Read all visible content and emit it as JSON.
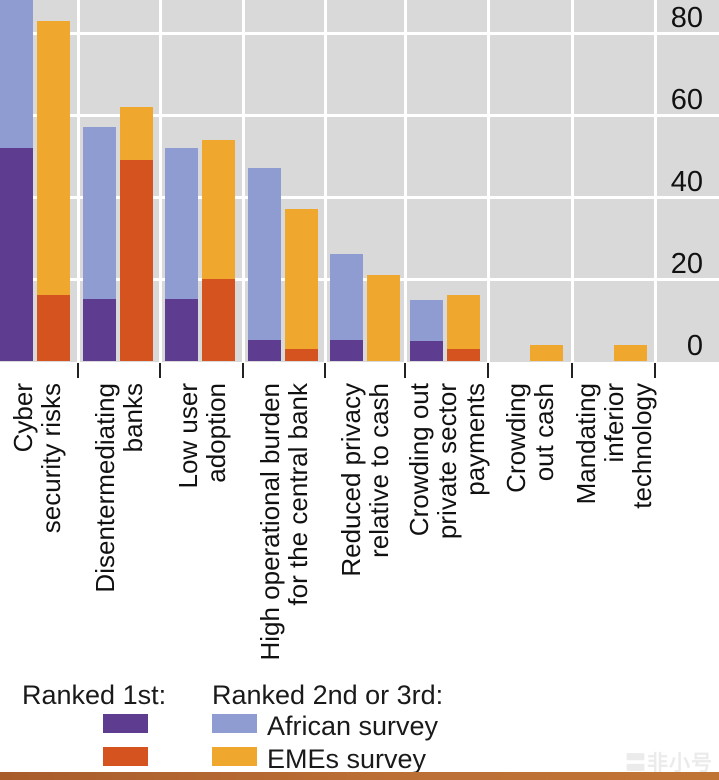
{
  "chart_data": {
    "type": "bar",
    "variant": "grouped-stacked",
    "title": "",
    "xlabel": "",
    "ylabel": "",
    "grid": true,
    "y_ticks": [
      80,
      60,
      40,
      20,
      0
    ],
    "ylim_visible": [
      0,
      88
    ],
    "legend_position": "bottom",
    "series_keys": [
      "african_ranked_1st",
      "african_ranked_2nd_3rd",
      "emes_ranked_1st",
      "emes_ranked_2nd_3rd"
    ],
    "categories": [
      {
        "slug": "cyber-security-risks",
        "label_lines": [
          "Cyber",
          "security risks"
        ],
        "african": {
          "ranked_1st": 52,
          "ranked_2nd_3rd": 39,
          "clipped_at_top": true
        },
        "emes": {
          "ranked_1st": 16,
          "ranked_2nd_3rd": 67
        }
      },
      {
        "slug": "disentermediating-banks",
        "label_lines": [
          "Disentermediating",
          "banks"
        ],
        "african": {
          "ranked_1st": 15,
          "ranked_2nd_3rd": 42
        },
        "emes": {
          "ranked_1st": 49,
          "ranked_2nd_3rd": 13
        }
      },
      {
        "slug": "low-user-adoption",
        "label_lines": [
          "Low user",
          "adoption"
        ],
        "african": {
          "ranked_1st": 15,
          "ranked_2nd_3rd": 37
        },
        "emes": {
          "ranked_1st": 20,
          "ranked_2nd_3rd": 34
        }
      },
      {
        "slug": "high-operational-burden",
        "label_lines": [
          "High operational burden",
          "for the central bank"
        ],
        "african": {
          "ranked_1st": 5,
          "ranked_2nd_3rd": 42
        },
        "emes": {
          "ranked_1st": 3,
          "ranked_2nd_3rd": 34
        }
      },
      {
        "slug": "reduced-privacy",
        "label_lines": [
          "Reduced privacy",
          "relative to cash"
        ],
        "african": {
          "ranked_1st": 5,
          "ranked_2nd_3rd": 21
        },
        "emes": {
          "ranked_1st": 0,
          "ranked_2nd_3rd": 21
        }
      },
      {
        "slug": "crowding-out-private-sector-payments",
        "label_lines": [
          "Crowding out",
          "private sector payments"
        ],
        "african": {
          "ranked_1st": 5,
          "ranked_2nd_3rd": 10
        },
        "emes": {
          "ranked_1st": 3,
          "ranked_2nd_3rd": 13
        }
      },
      {
        "slug": "crowding-out-cash",
        "label_lines": [
          "Crowding",
          "out cash"
        ],
        "african": {
          "ranked_1st": 0,
          "ranked_2nd_3rd": 0
        },
        "emes": {
          "ranked_1st": 0,
          "ranked_2nd_3rd": 4
        }
      },
      {
        "slug": "mandating-inferior-technology",
        "label_lines": [
          "Mandating inferior",
          "technology"
        ],
        "african": {
          "ranked_1st": 0,
          "ranked_2nd_3rd": 0
        },
        "emes": {
          "ranked_1st": 0,
          "ranked_2nd_3rd": 4
        }
      }
    ],
    "colors": {
      "african_1st": "#5e3c8f",
      "african_2nd_3rd": "#8e9cd2",
      "emes_1st": "#d5531f",
      "emes_2nd_3rd": "#efa72e",
      "plot_bg": "#d9d9d9",
      "gridline": "#ffffff",
      "text": "#1a1a1a"
    }
  },
  "legend": {
    "ranked_1st_label": "Ranked 1st:",
    "ranked_2nd_3rd_label": "Ranked 2nd or 3rd:",
    "entries": [
      {
        "name": "African survey"
      },
      {
        "name": "EMEs survey"
      }
    ]
  },
  "watermark": {
    "icon": "〓",
    "text": "非小号"
  }
}
